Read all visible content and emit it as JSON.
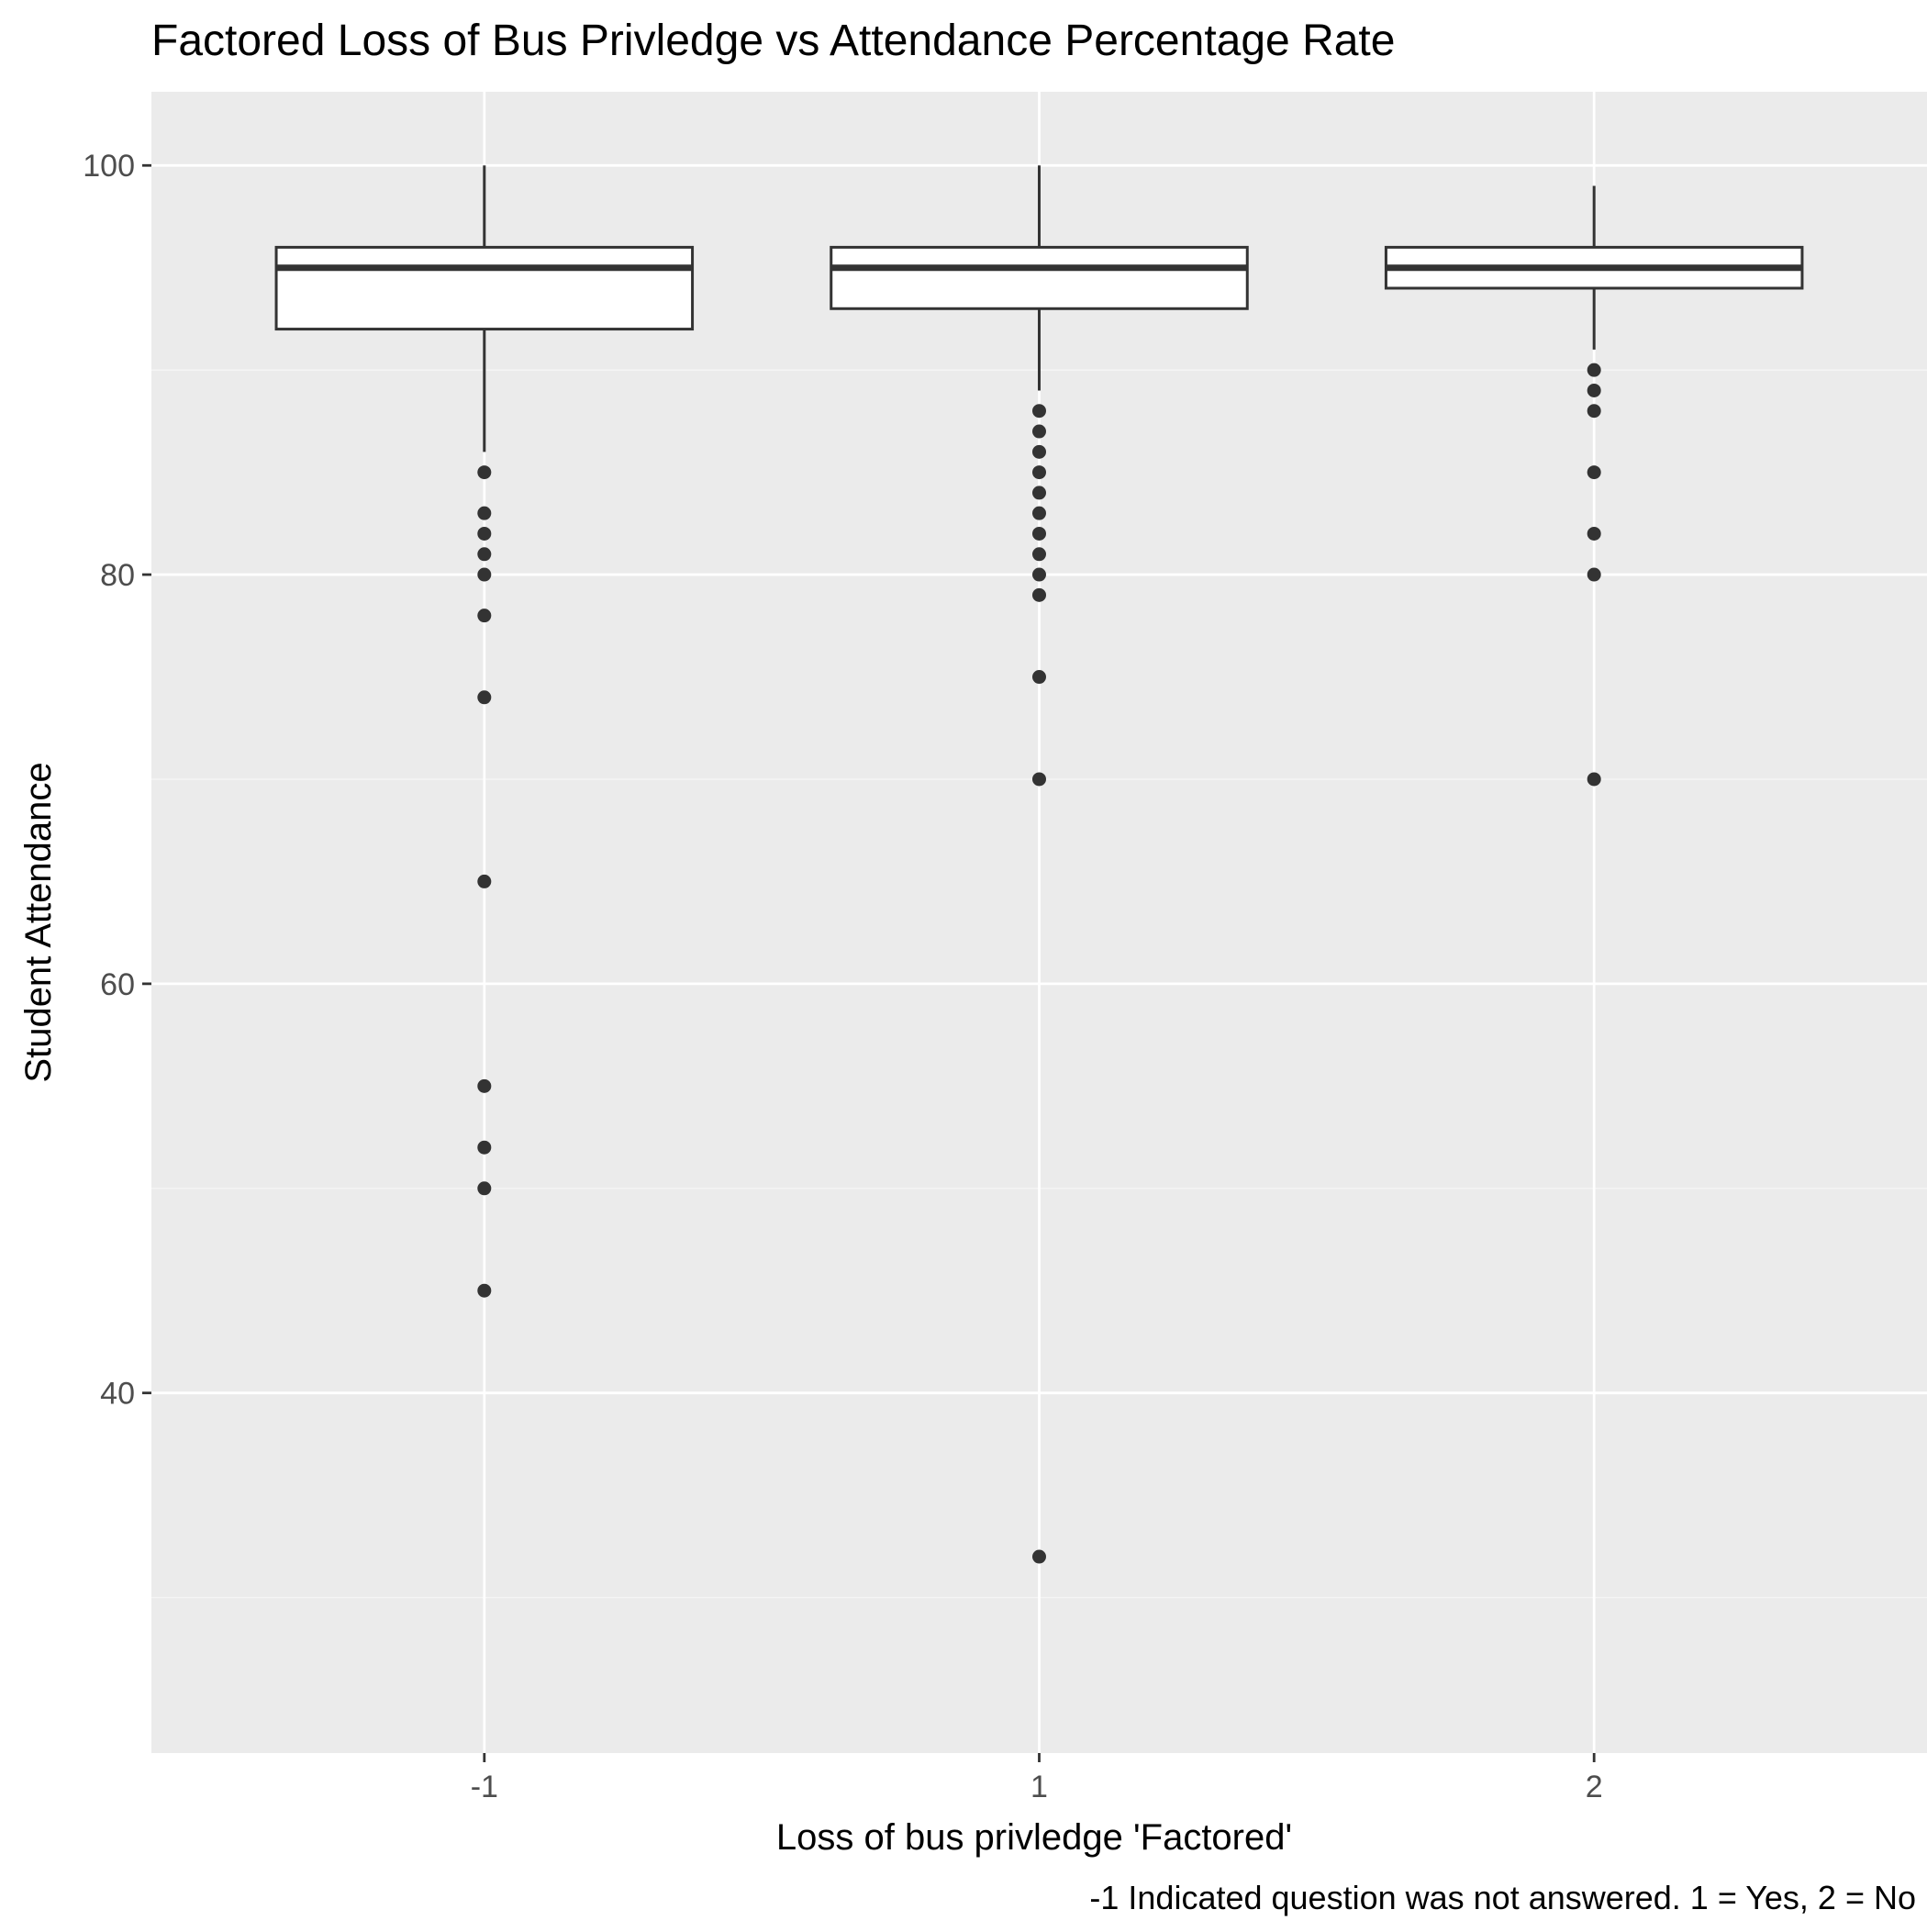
{
  "chart_data": {
    "type": "box",
    "title": "Factored Loss of Bus Privledge vs Attendance Percentage Rate",
    "xlabel": "Loss of bus privledge 'Factored'",
    "ylabel": "Student Attendance",
    "caption": "-1 Indicated question was not answered.  1 = Yes, 2 = No",
    "categories": [
      "-1",
      "1",
      "2"
    ],
    "y_ticks": [
      40,
      60,
      80,
      100
    ],
    "ylim": [
      22.4,
      103.6
    ],
    "grid": true,
    "boxes": [
      {
        "category": "-1",
        "min": 86,
        "q1": 92,
        "median": 95,
        "q3": 96,
        "max": 100,
        "outliers": [
          85,
          83,
          82,
          81,
          80,
          78,
          74,
          65,
          55,
          52,
          50,
          45
        ]
      },
      {
        "category": "1",
        "min": 89,
        "q1": 93,
        "median": 95,
        "q3": 96,
        "max": 100,
        "outliers": [
          88,
          87,
          86,
          85,
          84,
          83,
          82,
          81,
          80,
          79,
          75,
          70,
          32
        ]
      },
      {
        "category": "2",
        "min": 91,
        "q1": 94,
        "median": 95,
        "q3": 96,
        "max": 99,
        "outliers": [
          90,
          89,
          88,
          85,
          82,
          80,
          70
        ]
      }
    ]
  },
  "colors": {
    "panel_background": "#ebebeb",
    "grid_major": "#ffffff",
    "grid_minor": "#f5f5f5",
    "box_fill": "#ffffff",
    "box_stroke": "#333333",
    "outlier": "#333333",
    "axis_text": "#4d4d4d",
    "title_text": "#000000"
  }
}
